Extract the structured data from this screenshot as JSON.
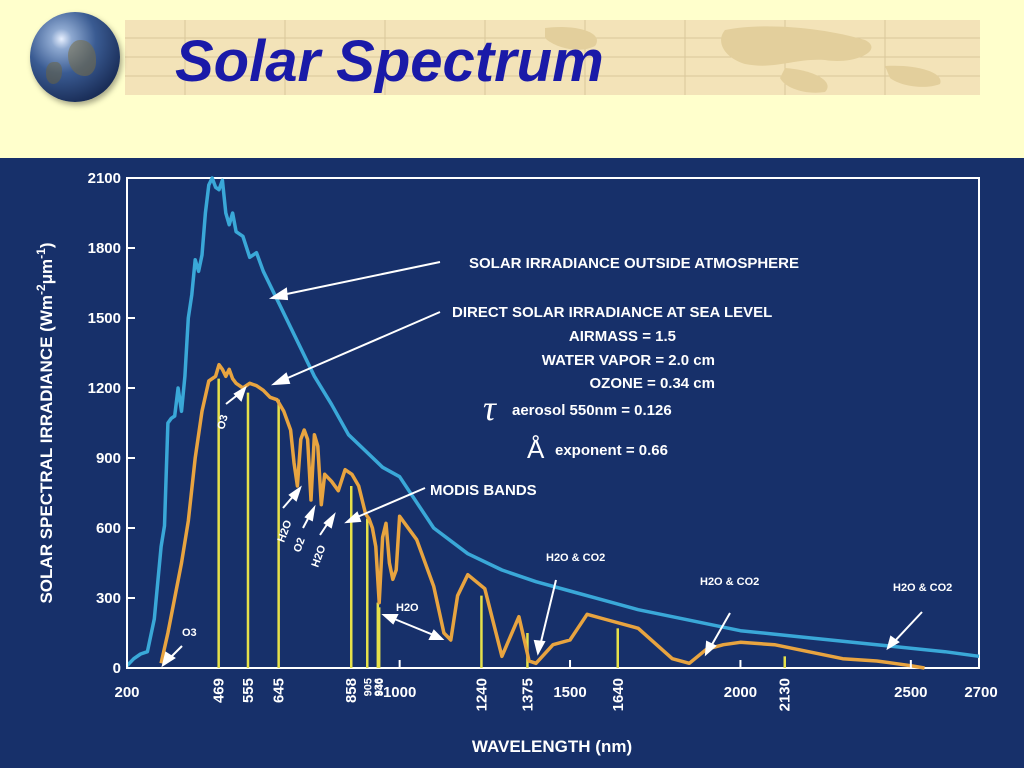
{
  "slide": {
    "title": "Solar Spectrum"
  },
  "chart_data": {
    "type": "line",
    "xlabel": "WAVELENGTH (nm)",
    "ylabel": "SOLAR SPECTRAL IRRADIANCE (Wm",
    "ylabel_unit_sup": "-2",
    "ylabel_mu": "μ",
    "ylabel_m": "m",
    "ylabel_sup2": "-1",
    "ylabel_close": ")",
    "xlim": [
      200,
      2700
    ],
    "ylim": [
      0,
      2100
    ],
    "x_ticks": [
      200,
      1000,
      1500,
      2000,
      2500,
      2700
    ],
    "y_ticks": [
      0,
      300,
      600,
      900,
      1200,
      1500,
      1800,
      2100
    ],
    "grid": false,
    "colors": {
      "outside": "#3aa8d8",
      "sea_level": "#e8a440",
      "bands": "#e6e04a",
      "background": "#17306a",
      "frame": "#ffffff"
    },
    "series": [
      {
        "key": "outside",
        "x": [
          200,
          220,
          240,
          260,
          280,
          300,
          310,
          320,
          330,
          340,
          350,
          360,
          370,
          380,
          390,
          400,
          410,
          420,
          430,
          440,
          450,
          460,
          470,
          480,
          490,
          500,
          510,
          520,
          540,
          560,
          580,
          600,
          650,
          700,
          750,
          800,
          850,
          900,
          950,
          1000,
          1100,
          1200,
          1300,
          1400,
          1500,
          1600,
          1700,
          1800,
          1900,
          2000,
          2200,
          2400,
          2600,
          2700
        ],
        "y": [
          10,
          40,
          60,
          70,
          210,
          520,
          610,
          1050,
          1070,
          1080,
          1200,
          1100,
          1250,
          1500,
          1600,
          1750,
          1700,
          1770,
          1950,
          2070,
          2100,
          2060,
          2050,
          2090,
          1950,
          1900,
          1950,
          1870,
          1850,
          1760,
          1780,
          1700,
          1550,
          1400,
          1250,
          1130,
          1000,
          930,
          860,
          820,
          600,
          490,
          420,
          370,
          330,
          290,
          250,
          220,
          190,
          160,
          130,
          100,
          70,
          50
        ]
      },
      {
        "key": "sea_level",
        "x": [
          300,
          320,
          340,
          360,
          380,
          400,
          420,
          440,
          460,
          470,
          480,
          490,
          500,
          510,
          520,
          540,
          560,
          580,
          600,
          620,
          640,
          660,
          680,
          690,
          700,
          710,
          720,
          730,
          740,
          750,
          760,
          770,
          780,
          800,
          820,
          840,
          860,
          880,
          900,
          910,
          920,
          930,
          940,
          950,
          960,
          970,
          980,
          990,
          1000,
          1050,
          1100,
          1130,
          1150,
          1170,
          1200,
          1250,
          1300,
          1350,
          1380,
          1400,
          1450,
          1500,
          1550,
          1600,
          1700,
          1800,
          1850,
          1900,
          1950,
          2000,
          2100,
          2200,
          2300,
          2400,
          2450,
          2500,
          2540
        ],
        "y": [
          20,
          150,
          300,
          450,
          630,
          900,
          1100,
          1230,
          1250,
          1300,
          1280,
          1250,
          1280,
          1240,
          1220,
          1200,
          1220,
          1210,
          1190,
          1160,
          1150,
          1100,
          1020,
          880,
          780,
          980,
          1020,
          980,
          720,
          1000,
          950,
          700,
          830,
          800,
          760,
          850,
          830,
          780,
          660,
          640,
          600,
          520,
          280,
          560,
          620,
          450,
          380,
          420,
          650,
          550,
          350,
          150,
          120,
          310,
          400,
          340,
          50,
          220,
          30,
          20,
          100,
          120,
          230,
          210,
          170,
          40,
          20,
          80,
          100,
          110,
          100,
          70,
          40,
          30,
          20,
          10,
          0
        ]
      }
    ],
    "modis_bands": [
      {
        "wavelength": 469,
        "label": "469",
        "top": 1240
      },
      {
        "wavelength": 555,
        "label": "555",
        "top": 1180
      },
      {
        "wavelength": 645,
        "label": "645",
        "top": 1150
      },
      {
        "wavelength": 858,
        "label": "858",
        "top": 780
      },
      {
        "wavelength": 905,
        "label": "905",
        "top": 640
      },
      {
        "wavelength": 936,
        "label": "936",
        "top": 280
      },
      {
        "wavelength": 940,
        "label": "940",
        "top": 260
      },
      {
        "wavelength": 1240,
        "label": "1240",
        "top": 310
      },
      {
        "wavelength": 1375,
        "label": "1375",
        "top": 150
      },
      {
        "wavelength": 1640,
        "label": "1640",
        "top": 170
      },
      {
        "wavelength": 2130,
        "label": "2130",
        "top": 50
      }
    ],
    "annotations": {
      "outside_label": "SOLAR IRRADIANCE OUTSIDE ATMOSPHERE",
      "sea_level_label": "DIRECT SOLAR IRRADIANCE AT SEA LEVEL",
      "airmass": "AIRMASS = 1.5",
      "water_vapor": "WATER VAPOR = 2.0 cm",
      "ozone": "OZONE = 0.34 cm",
      "tau_symbol": "τ",
      "aerosol": "aerosol 550nm = 0.126",
      "angstrom_symbol": "Å",
      "exponent": "exponent = 0.66",
      "modis_label": "MODIS BANDS",
      "o3_low": "O3",
      "o3_high": "O3",
      "h2o_a": "H2O",
      "o2": "O2",
      "h2o_b": "H2O",
      "h2o_mid": "H2O",
      "h2o_co2_1": "H2O & CO2",
      "h2o_co2_2": "H2O & CO2",
      "h2o_co2_3": "H2O & CO2"
    }
  }
}
